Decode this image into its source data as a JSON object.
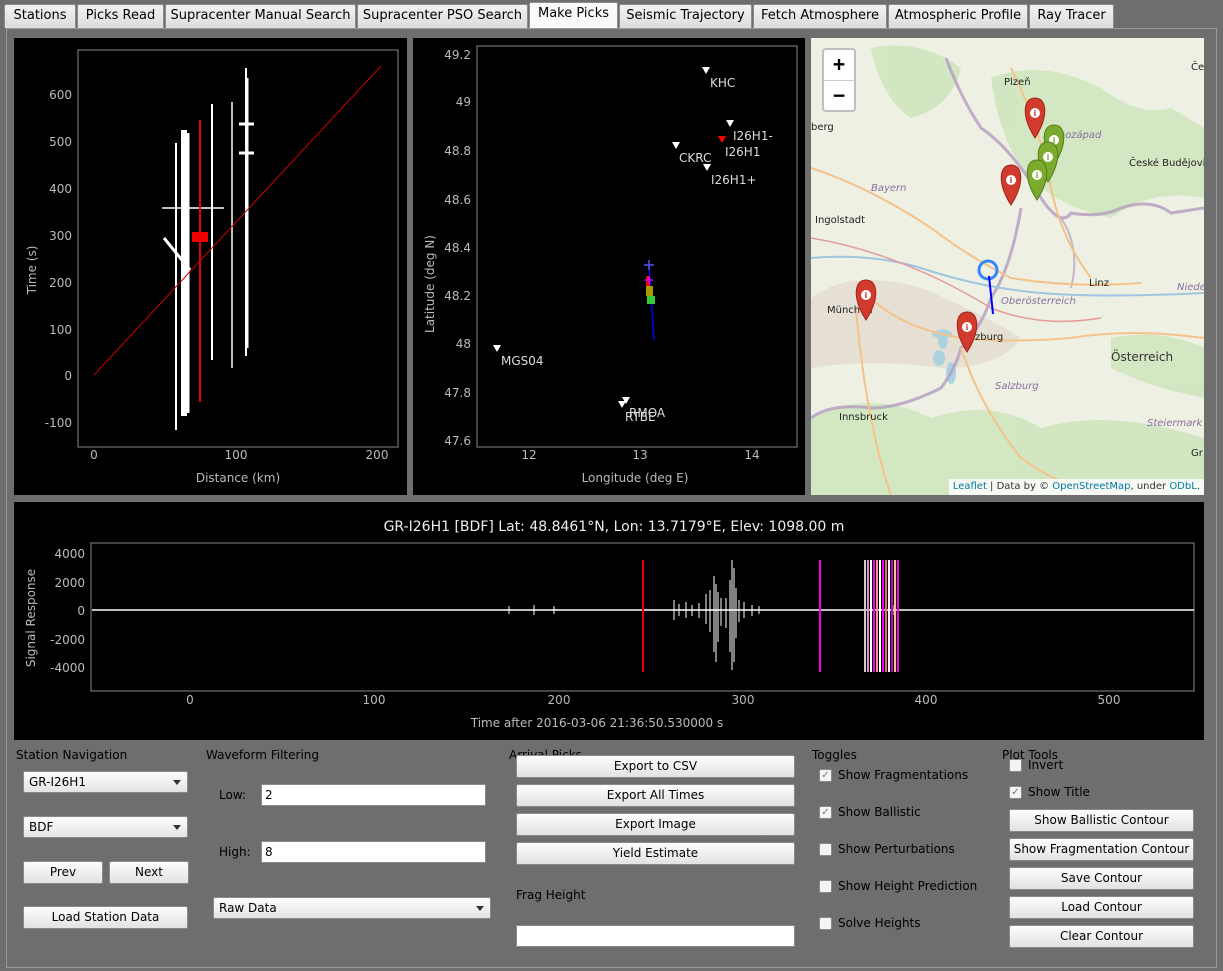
{
  "tabs": [
    {
      "label": "Stations"
    },
    {
      "label": "Picks Read"
    },
    {
      "label": "Supracenter Manual Search"
    },
    {
      "label": "Supracenter PSO Search"
    },
    {
      "label": "Make Picks"
    },
    {
      "label": "Seismic Trajectory"
    },
    {
      "label": "Fetch Atmosphere"
    },
    {
      "label": "Atmospheric Profile"
    },
    {
      "label": "Ray Tracer"
    }
  ],
  "active_tab": "Make Picks",
  "colors": {
    "plot_bg": "#000000",
    "waveform": "#ffffff",
    "pick_red": "#ff0000",
    "pick_magenta": "#ff00ff",
    "station_fixed": "#ffffff",
    "station_selected": "#ff0000",
    "marker_red": "#d13a2c",
    "marker_green": "#7aab2d",
    "traj_blue": "#0000ff"
  },
  "distance_plot": {
    "xlabel": "Distance (km)",
    "ylabel": "Time (s)",
    "xticks": [
      "0",
      "100",
      "200"
    ],
    "yticks": [
      "600",
      "500",
      "400",
      "300",
      "200",
      "100",
      "0",
      "-100"
    ]
  },
  "station_map_plot": {
    "xlabel": "Longitude (deg E)",
    "ylabel": "Latitude (deg N)",
    "xticks": [
      "12",
      "13",
      "14"
    ],
    "yticks": [
      "49.2",
      "49",
      "48.8",
      "48.6",
      "48.4",
      "48.2",
      "48",
      "47.8",
      "47.6"
    ],
    "stations": {
      "khc": "KHC",
      "i26h1_minus": "I26H1-",
      "i26h1": "I26H1",
      "ckrc": "CKRC",
      "i26h1_plus": "I26H1+",
      "mgs04": "MGS04",
      "rmoa": "RMOA",
      "rtbe": "RTBE"
    }
  },
  "web_map": {
    "zoom_in": "+",
    "zoom_out": "−",
    "places": {
      "plzen": "Plzeň",
      "jihozapad": "Jihozápad",
      "ceske_budejovice": "České Budějovice",
      "bayern": "Bayern",
      "ingolstadt": "Ingolstadt",
      "linz": "Linz",
      "oberosterreich": "Oberösterreich",
      "niede": "Niede",
      "munchen": "München",
      "salzburg_city": "zburg",
      "osterreich": "Österreich",
      "salzburg_state": "Salzburg",
      "innsbruck": "Innsbruck",
      "steiermark": "Steiermark",
      "gr": "Gr",
      "berg": "berg",
      "ce": "Če"
    },
    "attribution": {
      "leaflet": "Leaflet",
      "sep1": " | Data by © ",
      "osm": "OpenStreetMap",
      "sep2": ", under ",
      "odbl": "ODbL",
      "end": "."
    }
  },
  "waveform_plot": {
    "title": "GR-I26H1 [BDF] Lat: 48.8461°N, Lon: 13.7179°E, Elev: 1098.00 m",
    "xlabel": "Time after 2016-03-06 21:36:50.530000 s",
    "ylabel": "Signal Response",
    "xticks": [
      "0",
      "100",
      "200",
      "300",
      "400",
      "500"
    ],
    "yticks": [
      "4000",
      "2000",
      "0",
      "-2000",
      "-4000"
    ]
  },
  "station_navigation": {
    "heading": "Station Navigation",
    "station_select": "GR-I26H1",
    "channel_select": "BDF",
    "prev": "Prev",
    "next": "Next",
    "load": "Load Station Data"
  },
  "waveform_filtering": {
    "heading": "Waveform Filtering",
    "low_label": "Low:",
    "low_value": "2",
    "high_label": "High:",
    "high_value": "8",
    "data_select": "Raw Data"
  },
  "arrival_picks": {
    "heading": "Arrival Picks",
    "export_csv": "Export to CSV",
    "export_all": "Export All Times",
    "export_image": "Export Image",
    "yield_estimate": "Yield Estimate",
    "frag_height_label": "Frag Height",
    "frag_height_value": ""
  },
  "toggles": {
    "heading": "Toggles",
    "items": [
      {
        "label": "Show Fragmentations",
        "checked": true
      },
      {
        "label": "Show Ballistic",
        "checked": true
      },
      {
        "label": "Show Perturbations",
        "checked": false
      },
      {
        "label": "Show Height Prediction",
        "checked": false
      },
      {
        "label": "Solve Heights",
        "checked": false
      }
    ]
  },
  "plot_tools": {
    "heading": "Plot Tools",
    "invert": {
      "label": "Invert",
      "checked": false
    },
    "show_title": {
      "label": "Show Title",
      "checked": true
    },
    "ballistic_contour": "Show Ballistic Contour",
    "frag_contour": "Show Fragmentation Contour",
    "save_contour": "Save Contour",
    "load_contour": "Load Contour",
    "clear_contour": "Clear Contour"
  }
}
